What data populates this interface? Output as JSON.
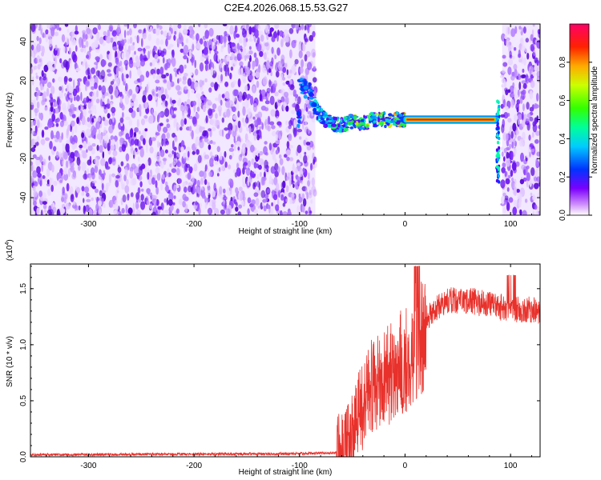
{
  "title": "C2E4.2026.068.15.53.G27",
  "chart_data": [
    {
      "type": "heatmap",
      "xlabel": "Height of straight line (km)",
      "ylabel": "Frequency (Hz)",
      "xlim": [
        -355,
        128
      ],
      "ylim": [
        -49,
        49
      ],
      "xticks": [
        -300,
        -200,
        -100,
        0,
        100
      ],
      "yticks": [
        40,
        20,
        0,
        -20,
        -40
      ],
      "noise_band_x": [
        -355,
        -85
      ],
      "noise_band2_x": [
        92,
        128
      ],
      "signal_trace": [
        {
          "x": -100,
          "y": 18
        },
        {
          "x": -90,
          "y": 14
        },
        {
          "x": -85,
          "y": 6
        },
        {
          "x": -80,
          "y": 2
        },
        {
          "x": -70,
          "y": -2
        },
        {
          "x": -60,
          "y": -3
        },
        {
          "x": -50,
          "y": -1
        },
        {
          "x": -40,
          "y": -2
        },
        {
          "x": -30,
          "y": 0
        },
        {
          "x": -20,
          "y": 0
        },
        {
          "x": -10,
          "y": 0
        },
        {
          "x": 0,
          "y": 0
        },
        {
          "x": 40,
          "y": 0
        },
        {
          "x": 86,
          "y": 0
        }
      ],
      "strong_band_x": [
        0,
        86
      ],
      "colorbar": {
        "label": "Normalized spectral amplitude",
        "ticks": [
          "0.0",
          "0.2",
          "0.4",
          "0.6",
          "0.8"
        ],
        "tick_values": [
          0,
          0.2,
          0.4,
          0.6,
          0.8
        ],
        "range": [
          0,
          1
        ]
      }
    },
    {
      "type": "line",
      "xlabel": "Height of straight line (km)",
      "ylabel": "SNR (10 * v/v)",
      "exponent": "(x10",
      "exponent_power": "4",
      "exponent_close": ")",
      "xlim": [
        -355,
        128
      ],
      "ylim": [
        0,
        1.72
      ],
      "xticks": [
        -300,
        -200,
        -100,
        0,
        100
      ],
      "yticks": [
        "0.0",
        "0.5",
        "1.0",
        "1.5"
      ],
      "ytick_values": [
        0,
        0.5,
        1.0,
        1.5
      ],
      "series": [
        {
          "color": "#e8312b",
          "envelope": [
            {
              "x": -355,
              "y": 0.02
            },
            {
              "x": -100,
              "y": 0.03
            },
            {
              "x": -65,
              "y": 0.04
            },
            {
              "x": -55,
              "y": 0.2
            },
            {
              "x": -45,
              "y": 0.45
            },
            {
              "x": -35,
              "y": 0.65
            },
            {
              "x": -25,
              "y": 0.8
            },
            {
              "x": -15,
              "y": 0.85
            },
            {
              "x": -5,
              "y": 0.95
            },
            {
              "x": 5,
              "y": 1.05
            },
            {
              "x": 15,
              "y": 1.2
            },
            {
              "x": 25,
              "y": 1.32
            },
            {
              "x": 40,
              "y": 1.42
            },
            {
              "x": 60,
              "y": 1.42
            },
            {
              "x": 80,
              "y": 1.38
            },
            {
              "x": 100,
              "y": 1.34
            },
            {
              "x": 128,
              "y": 1.33
            }
          ]
        }
      ]
    }
  ]
}
